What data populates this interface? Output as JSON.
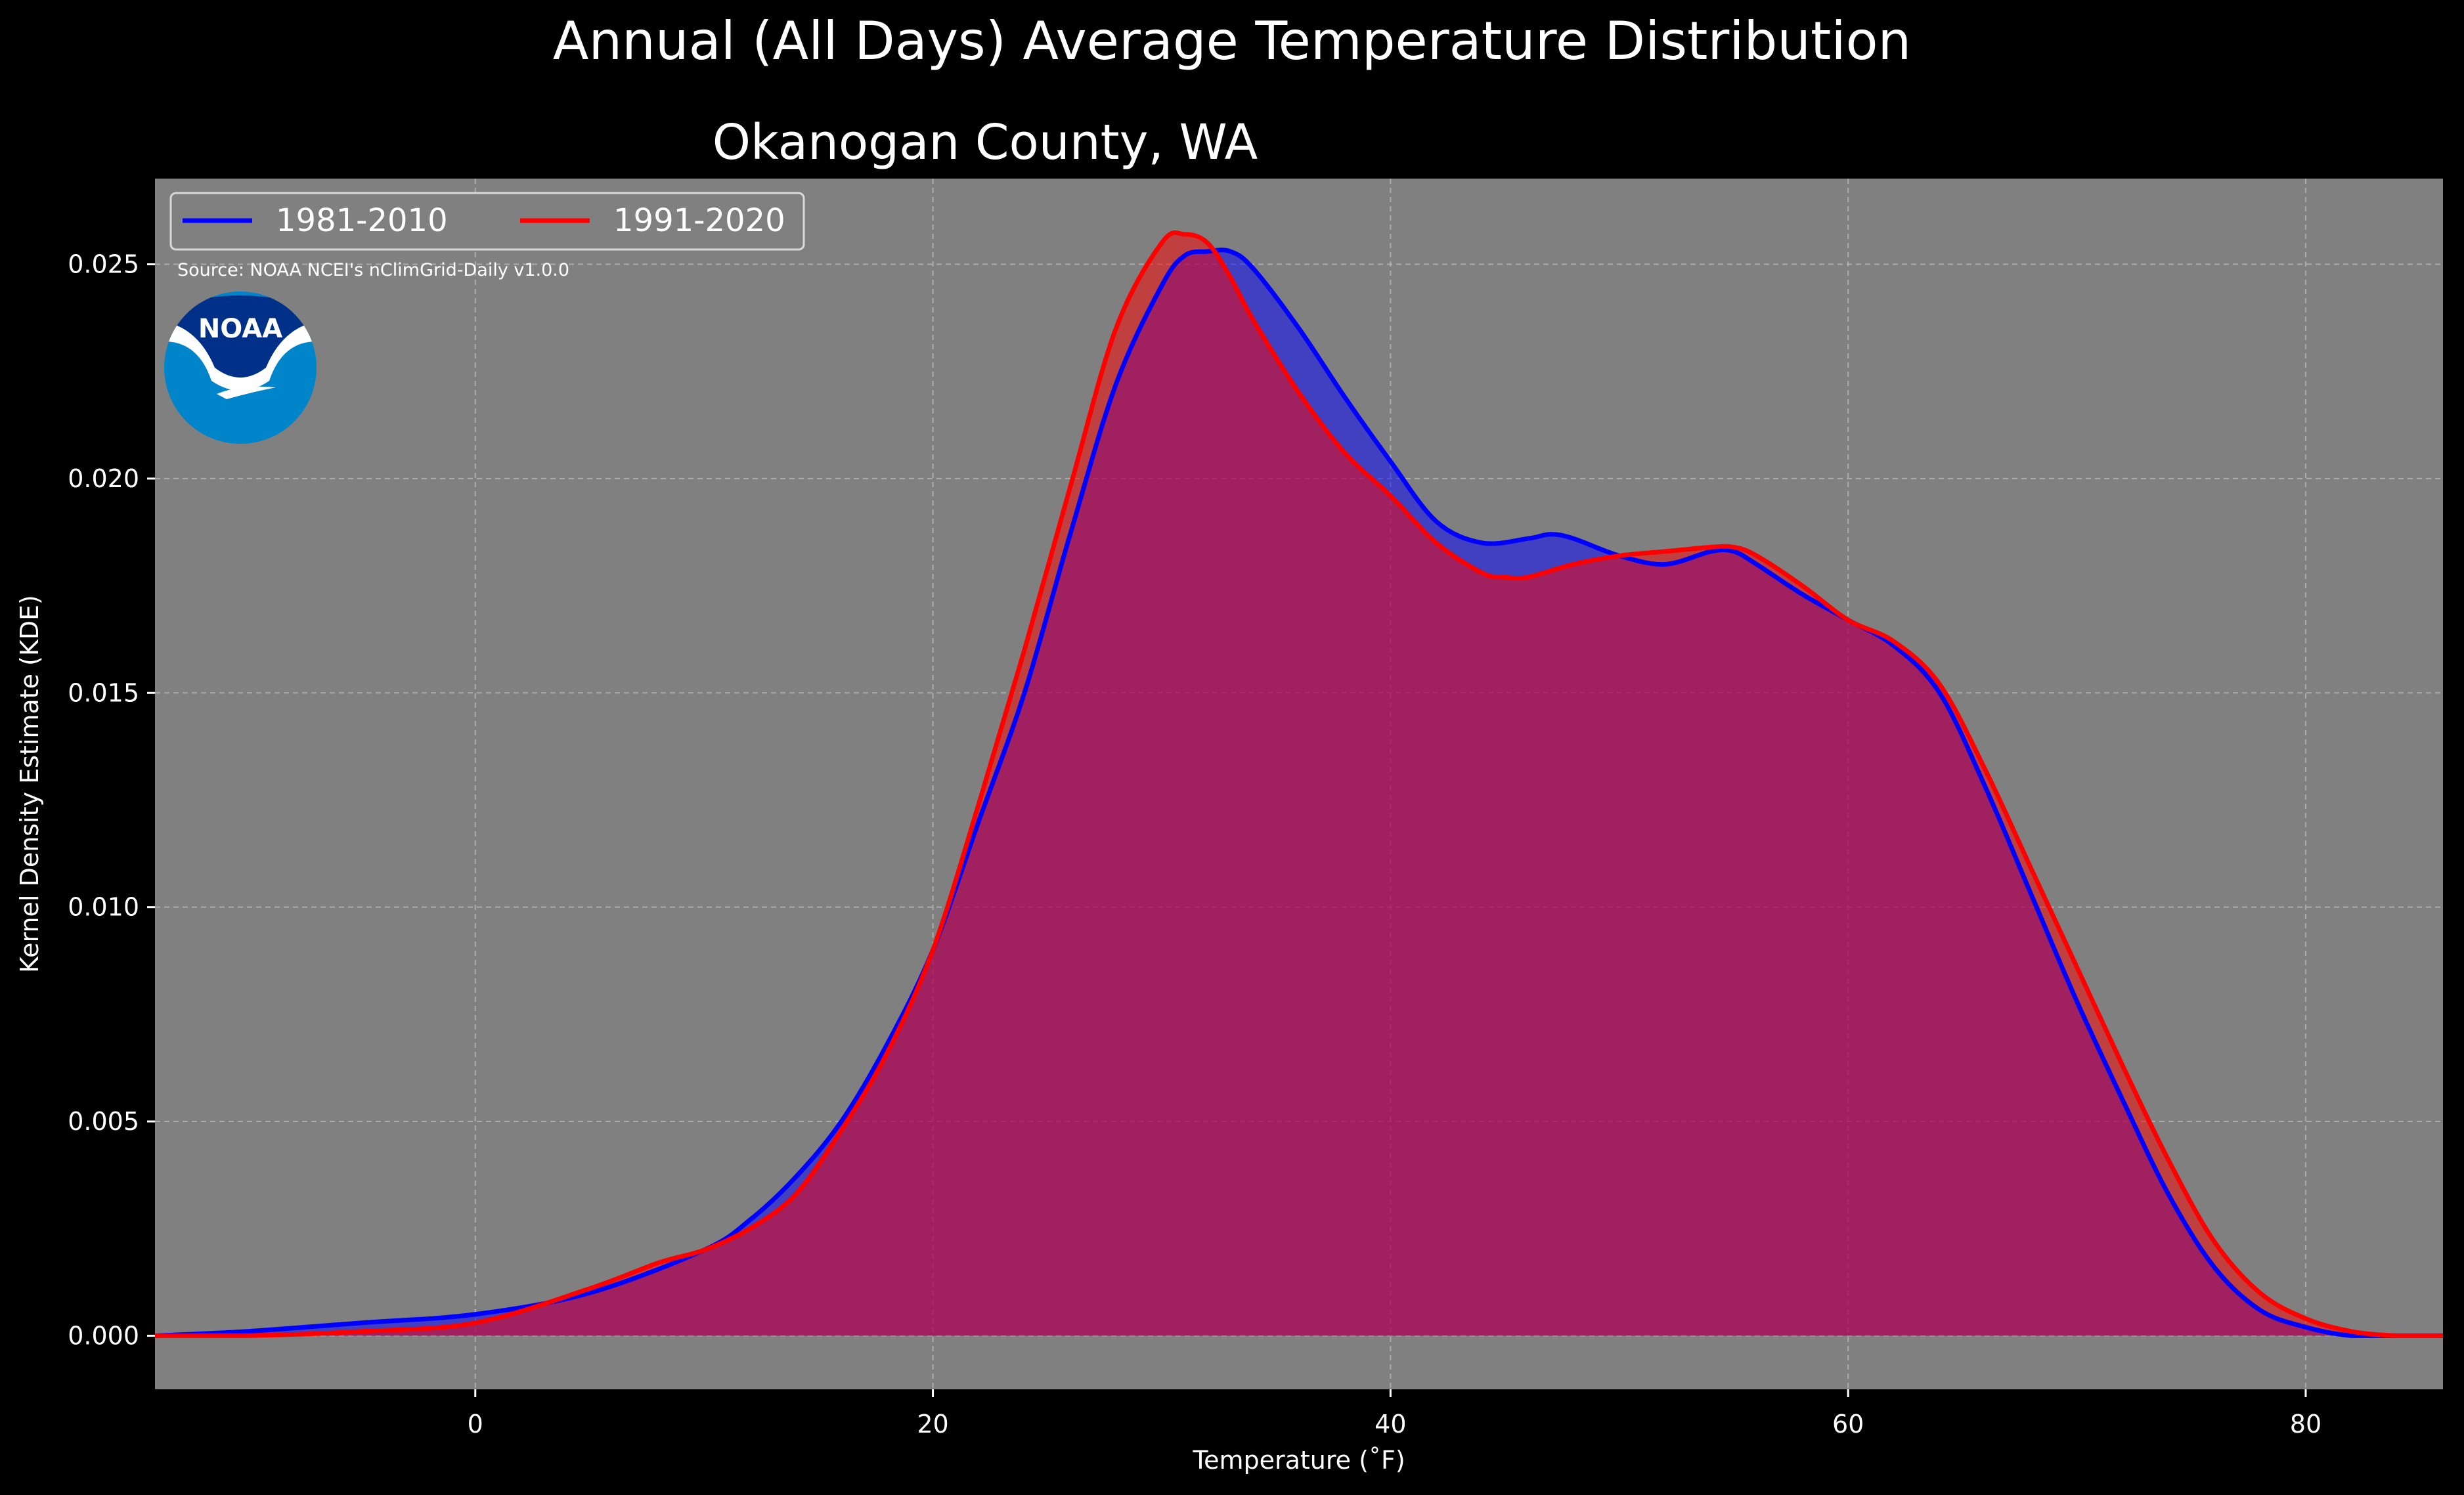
{
  "suptitle": "Annual (All Days) Average Temperature Distribution",
  "colors": {
    "background": "#000000",
    "plot_bg": "#808080",
    "series_1981": "#0000ff",
    "series_1991": "#ff0000",
    "noaa_dark": "#003087",
    "noaa_light": "#0085ca"
  },
  "logo": {
    "text": "NOAA"
  },
  "source": "Source: NOAA NCEI's nClimGrid-Daily v1.0.0",
  "chart_data": {
    "type": "area",
    "title": "Okanogan County, WA",
    "xlabel": "Temperature (˚F)",
    "ylabel": "Kernel Density Estimate (KDE)",
    "xlim": [
      -14,
      86
    ],
    "ylim": [
      -0.00125,
      0.027
    ],
    "xticks": [
      0,
      20,
      40,
      60,
      80
    ],
    "xtick_labels": [
      "0",
      "20",
      "40",
      "60",
      "80"
    ],
    "yticks": [
      0.0,
      0.005,
      0.01,
      0.015,
      0.02,
      0.025
    ],
    "ytick_labels": [
      "0.000",
      "0.005",
      "0.010",
      "0.015",
      "0.020",
      "0.025"
    ],
    "grid": true,
    "legend": "top-left",
    "series": [
      {
        "name": "1981-2010",
        "x": [
          -14,
          -10,
          -5,
          0,
          5,
          10,
          12,
          14,
          16,
          18,
          20,
          22,
          24,
          26,
          28,
          30,
          31,
          32,
          33,
          34,
          36,
          38,
          40,
          42,
          44,
          46,
          47,
          48,
          50,
          52,
          54,
          55,
          56,
          58,
          60,
          62,
          64,
          66,
          68,
          70,
          72,
          74,
          76,
          78,
          80,
          82,
          84,
          86
        ],
        "y": [
          0.0,
          0.0001,
          0.0003,
          0.0005,
          0.001,
          0.002,
          0.0027,
          0.0037,
          0.005,
          0.0068,
          0.009,
          0.012,
          0.015,
          0.0187,
          0.0222,
          0.0245,
          0.0252,
          0.0253,
          0.0253,
          0.0249,
          0.0235,
          0.0219,
          0.0204,
          0.019,
          0.0185,
          0.0186,
          0.0187,
          0.0186,
          0.0182,
          0.018,
          0.0183,
          0.0183,
          0.018,
          0.0173,
          0.0167,
          0.0161,
          0.015,
          0.0128,
          0.0103,
          0.0078,
          0.0055,
          0.0033,
          0.0016,
          0.0006,
          0.0002,
          0.0,
          0.0,
          0.0
        ]
      },
      {
        "name": "1991-2020",
        "x": [
          -14,
          -10,
          -5,
          0,
          5,
          8,
          10,
          12,
          14,
          16,
          18,
          20,
          22,
          24,
          26,
          28,
          30,
          31,
          32,
          33,
          34,
          36,
          38,
          40,
          42,
          44,
          45,
          46,
          48,
          50,
          52,
          54,
          55,
          56,
          58,
          60,
          62,
          64,
          66,
          68,
          70,
          72,
          74,
          76,
          78,
          80,
          82,
          84,
          86
        ],
        "y": [
          0.0,
          0.0,
          0.0001,
          0.0003,
          0.0011,
          0.0017,
          0.002,
          0.0025,
          0.0033,
          0.0048,
          0.0066,
          0.009,
          0.0124,
          0.016,
          0.0198,
          0.0235,
          0.0255,
          0.0257,
          0.0255,
          0.0247,
          0.0237,
          0.022,
          0.0206,
          0.0196,
          0.0185,
          0.0178,
          0.0177,
          0.0177,
          0.018,
          0.0182,
          0.0183,
          0.0184,
          0.0184,
          0.0182,
          0.0175,
          0.0167,
          0.0162,
          0.0152,
          0.0132,
          0.0109,
          0.0086,
          0.0063,
          0.0041,
          0.0022,
          0.001,
          0.0004,
          0.0001,
          0.0,
          0.0
        ]
      }
    ]
  }
}
